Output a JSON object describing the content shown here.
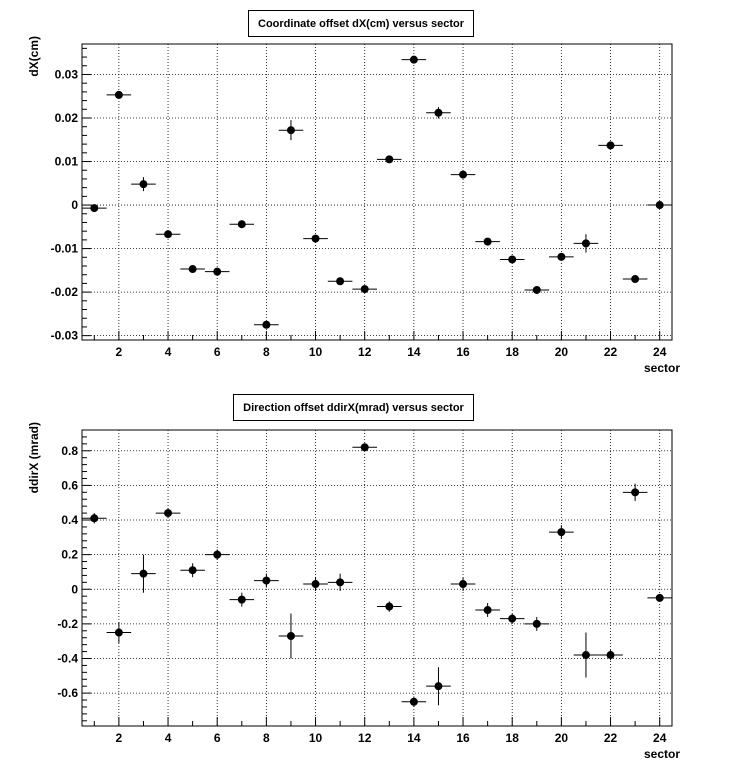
{
  "chart_data": [
    {
      "type": "scatter",
      "title": "Coordinate offset dX(cm) versus sector",
      "xlabel": "sector",
      "ylabel": "dX(cm)",
      "xlim": [
        0.5,
        24.5
      ],
      "ylim": [
        -0.031,
        0.037
      ],
      "grid": true,
      "x_ticks": [
        2,
        4,
        6,
        8,
        10,
        12,
        14,
        16,
        18,
        20,
        22,
        24
      ],
      "y_ticks": [
        -0.03,
        -0.02,
        -0.01,
        0,
        0.01,
        0.02,
        0.03
      ],
      "y_tick_labels": [
        "-0.03",
        "-0.02",
        "-0.01",
        "0",
        "0.01",
        "0.02",
        "0.03"
      ],
      "x": [
        1,
        2,
        3,
        4,
        5,
        6,
        7,
        8,
        9,
        10,
        11,
        12,
        13,
        14,
        15,
        16,
        17,
        18,
        19,
        20,
        21,
        22,
        23,
        24
      ],
      "y": [
        -0.0007,
        0.0253,
        0.0048,
        -0.0067,
        -0.0147,
        -0.0153,
        -0.0044,
        -0.0275,
        0.0172,
        -0.0077,
        -0.0175,
        -0.0193,
        0.0105,
        0.0334,
        0.0212,
        0.007,
        -0.0084,
        -0.0125,
        -0.0195,
        -0.0119,
        -0.0088,
        0.0137,
        -0.017,
        0.0
      ],
      "y_err": [
        0.0005,
        0.0005,
        0.0016,
        0.0005,
        0.0005,
        0.0005,
        0.0005,
        0.0005,
        0.0023,
        0.0005,
        0.0005,
        0.0005,
        0.0005,
        0.0005,
        0.0013,
        0.0005,
        0.0005,
        0.0005,
        0.0005,
        0.0005,
        0.0021,
        0.0005,
        0.0005,
        0.0005
      ],
      "x_err": 0.5
    },
    {
      "type": "scatter",
      "title": "Direction offset ddirX(mrad) versus sector",
      "xlabel": "sector",
      "ylabel": "ddirX (mrad)",
      "xlim": [
        0.5,
        24.5
      ],
      "ylim": [
        -0.79,
        0.92
      ],
      "grid": true,
      "x_ticks": [
        2,
        4,
        6,
        8,
        10,
        12,
        14,
        16,
        18,
        20,
        22,
        24
      ],
      "y_ticks": [
        -0.6,
        -0.4,
        -0.2,
        0,
        0.2,
        0.4,
        0.6,
        0.8
      ],
      "y_tick_labels": [
        "-0.6",
        "-0.4",
        "-0.2",
        "0",
        "0.2",
        "0.4",
        "0.6",
        "0.8"
      ],
      "x": [
        1,
        2,
        3,
        4,
        5,
        6,
        7,
        8,
        9,
        10,
        11,
        12,
        13,
        14,
        15,
        16,
        17,
        18,
        19,
        20,
        21,
        22,
        23,
        24
      ],
      "y": [
        0.41,
        -0.25,
        0.09,
        0.44,
        0.11,
        0.2,
        -0.06,
        0.05,
        -0.27,
        0.03,
        0.04,
        0.82,
        -0.1,
        -0.65,
        -0.56,
        0.03,
        -0.12,
        -0.17,
        -0.2,
        0.33,
        -0.38,
        -0.38,
        0.56,
        -0.05
      ],
      "y_err": [
        0.03,
        0.06,
        0.11,
        0.03,
        0.04,
        0.03,
        0.04,
        0.04,
        0.13,
        0.04,
        0.05,
        0.02,
        0.03,
        0.03,
        0.11,
        0.04,
        0.04,
        0.03,
        0.04,
        0.04,
        0.13,
        0.03,
        0.05,
        0.02
      ],
      "x_err": 0.5
    }
  ]
}
